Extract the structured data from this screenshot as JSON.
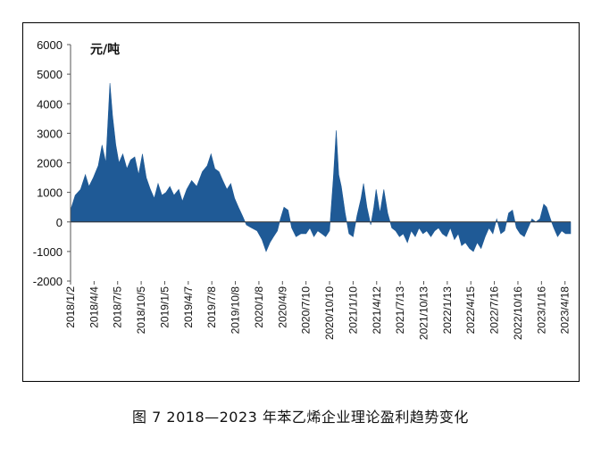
{
  "caption": "图 7  2018—2023 年苯乙烯企业理论盈利趋势变化",
  "chart_data": {
    "type": "area",
    "unit_label": "元/吨",
    "color": "#1f5a96",
    "ylim": [
      -2000,
      6000
    ],
    "yticks": [
      6000,
      5000,
      4000,
      3000,
      2000,
      1000,
      0,
      -1000,
      -2000
    ],
    "xlim": [
      "2018-01-02",
      "2023-05-10"
    ],
    "xticks": [
      "2018/1/2",
      "2018/4/4",
      "2018/7/5",
      "2018/10/5",
      "2019/1/5",
      "2019/4/7",
      "2019/7/8",
      "2019/10/8",
      "2020/1/8",
      "2020/4/9",
      "2020/7/10",
      "2020/10/10",
      "2021/1/10",
      "2021/4/12",
      "2021/7/13",
      "2021/10/13",
      "2022/1/13",
      "2022/4/15",
      "2022/7/16",
      "2022/10/16",
      "2023/1/16",
      "2023/4/18"
    ],
    "points": [
      [
        "2018-01-02",
        400
      ],
      [
        "2018-01-20",
        900
      ],
      [
        "2018-02-10",
        1100
      ],
      [
        "2018-03-01",
        1600
      ],
      [
        "2018-03-15",
        1200
      ],
      [
        "2018-04-01",
        1500
      ],
      [
        "2018-04-20",
        1900
      ],
      [
        "2018-05-05",
        2600
      ],
      [
        "2018-05-20",
        2000
      ],
      [
        "2018-06-05",
        4700
      ],
      [
        "2018-06-15",
        3600
      ],
      [
        "2018-06-28",
        2600
      ],
      [
        "2018-07-10",
        2000
      ],
      [
        "2018-07-25",
        2300
      ],
      [
        "2018-08-10",
        1800
      ],
      [
        "2018-08-25",
        2100
      ],
      [
        "2018-09-10",
        2200
      ],
      [
        "2018-09-25",
        1600
      ],
      [
        "2018-10-10",
        2300
      ],
      [
        "2018-10-25",
        1500
      ],
      [
        "2018-11-10",
        1100
      ],
      [
        "2018-11-25",
        800
      ],
      [
        "2018-12-10",
        1300
      ],
      [
        "2018-12-25",
        900
      ],
      [
        "2019-01-10",
        1000
      ],
      [
        "2019-01-25",
        1200
      ],
      [
        "2019-02-10",
        900
      ],
      [
        "2019-03-01",
        1100
      ],
      [
        "2019-03-15",
        700
      ],
      [
        "2019-04-01",
        1100
      ],
      [
        "2019-04-20",
        1400
      ],
      [
        "2019-05-10",
        1200
      ],
      [
        "2019-06-01",
        1700
      ],
      [
        "2019-06-20",
        1900
      ],
      [
        "2019-07-05",
        2300
      ],
      [
        "2019-07-20",
        1800
      ],
      [
        "2019-08-05",
        1700
      ],
      [
        "2019-08-20",
        1400
      ],
      [
        "2019-09-05",
        1100
      ],
      [
        "2019-09-20",
        1300
      ],
      [
        "2019-10-05",
        800
      ],
      [
        "2019-10-20",
        500
      ],
      [
        "2019-11-05",
        200
      ],
      [
        "2019-11-20",
        -100
      ],
      [
        "2019-12-10",
        -200
      ],
      [
        "2020-01-01",
        -300
      ],
      [
        "2020-01-20",
        -600
      ],
      [
        "2020-02-05",
        -1000
      ],
      [
        "2020-02-20",
        -700
      ],
      [
        "2020-03-05",
        -500
      ],
      [
        "2020-03-20",
        -300
      ],
      [
        "2020-04-01",
        100
      ],
      [
        "2020-04-15",
        500
      ],
      [
        "2020-05-01",
        400
      ],
      [
        "2020-05-15",
        -200
      ],
      [
        "2020-06-01",
        -500
      ],
      [
        "2020-06-20",
        -400
      ],
      [
        "2020-07-10",
        -400
      ],
      [
        "2020-07-25",
        -200
      ],
      [
        "2020-08-10",
        -500
      ],
      [
        "2020-08-25",
        -300
      ],
      [
        "2020-09-10",
        -400
      ],
      [
        "2020-09-25",
        -500
      ],
      [
        "2020-10-10",
        -300
      ],
      [
        "2020-10-25",
        1500
      ],
      [
        "2020-11-05",
        3100
      ],
      [
        "2020-11-15",
        1600
      ],
      [
        "2020-11-25",
        1200
      ],
      [
        "2020-12-10",
        300
      ],
      [
        "2020-12-25",
        -400
      ],
      [
        "2021-01-10",
        -500
      ],
      [
        "2021-01-25",
        200
      ],
      [
        "2021-02-10",
        800
      ],
      [
        "2021-02-20",
        1300
      ],
      [
        "2021-03-05",
        500
      ],
      [
        "2021-03-20",
        -100
      ],
      [
        "2021-04-01",
        500
      ],
      [
        "2021-04-10",
        1100
      ],
      [
        "2021-04-25",
        300
      ],
      [
        "2021-05-10",
        1100
      ],
      [
        "2021-05-25",
        300
      ],
      [
        "2021-06-10",
        -200
      ],
      [
        "2021-06-25",
        -300
      ],
      [
        "2021-07-10",
        -500
      ],
      [
        "2021-07-25",
        -400
      ],
      [
        "2021-08-10",
        -700
      ],
      [
        "2021-08-25",
        -300
      ],
      [
        "2021-09-10",
        -500
      ],
      [
        "2021-09-25",
        -200
      ],
      [
        "2021-10-10",
        -400
      ],
      [
        "2021-10-25",
        -300
      ],
      [
        "2021-11-10",
        -500
      ],
      [
        "2021-11-25",
        -300
      ],
      [
        "2021-12-10",
        -200
      ],
      [
        "2021-12-25",
        -400
      ],
      [
        "2022-01-10",
        -500
      ],
      [
        "2022-01-25",
        -200
      ],
      [
        "2022-02-10",
        -600
      ],
      [
        "2022-02-25",
        -400
      ],
      [
        "2022-03-10",
        -800
      ],
      [
        "2022-03-25",
        -700
      ],
      [
        "2022-04-10",
        -900
      ],
      [
        "2022-04-25",
        -1000
      ],
      [
        "2022-05-10",
        -700
      ],
      [
        "2022-05-25",
        -900
      ],
      [
        "2022-06-10",
        -500
      ],
      [
        "2022-06-25",
        -200
      ],
      [
        "2022-07-10",
        -400
      ],
      [
        "2022-07-25",
        100
      ],
      [
        "2022-08-10",
        -400
      ],
      [
        "2022-08-25",
        -300
      ],
      [
        "2022-09-10",
        300
      ],
      [
        "2022-09-25",
        400
      ],
      [
        "2022-10-10",
        -200
      ],
      [
        "2022-10-25",
        -400
      ],
      [
        "2022-11-10",
        -500
      ],
      [
        "2022-11-25",
        -200
      ],
      [
        "2022-12-10",
        100
      ],
      [
        "2022-12-25",
        0
      ],
      [
        "2023-01-10",
        100
      ],
      [
        "2023-01-25",
        600
      ],
      [
        "2023-02-05",
        500
      ],
      [
        "2023-02-20",
        100
      ],
      [
        "2023-03-05",
        -200
      ],
      [
        "2023-03-20",
        -500
      ],
      [
        "2023-04-05",
        -300
      ],
      [
        "2023-04-20",
        -400
      ],
      [
        "2023-05-10",
        -400
      ]
    ]
  }
}
